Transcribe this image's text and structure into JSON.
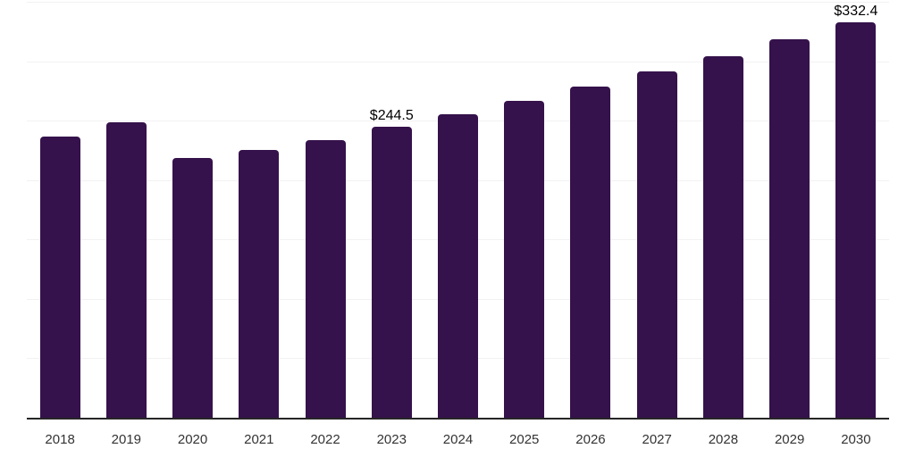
{
  "chart_data": {
    "type": "bar",
    "title": "",
    "xlabel": "",
    "ylabel": "",
    "categories": [
      "2018",
      "2019",
      "2020",
      "2021",
      "2022",
      "2023",
      "2024",
      "2025",
      "2026",
      "2027",
      "2028",
      "2029",
      "2030"
    ],
    "values": [
      236.6,
      248.6,
      218.5,
      225.3,
      233.6,
      244.5,
      255.5,
      266.9,
      278.9,
      291.4,
      304.5,
      318.2,
      332.4
    ],
    "data_labels": [
      "",
      "",
      "",
      "",
      "",
      "$244.5",
      "",
      "",
      "",
      "",
      "",
      "",
      "$332.4"
    ],
    "ylim": [
      0,
      350
    ],
    "grid_step": 50,
    "grid": true,
    "legend": false,
    "y_tick_labels_visible": false,
    "colors": {
      "bar": "#35124B",
      "axis_line": "#262626",
      "gridline": "#f2f2f2",
      "tick_label": "#333333",
      "data_label": "#000000",
      "background": "#ffffff"
    }
  }
}
